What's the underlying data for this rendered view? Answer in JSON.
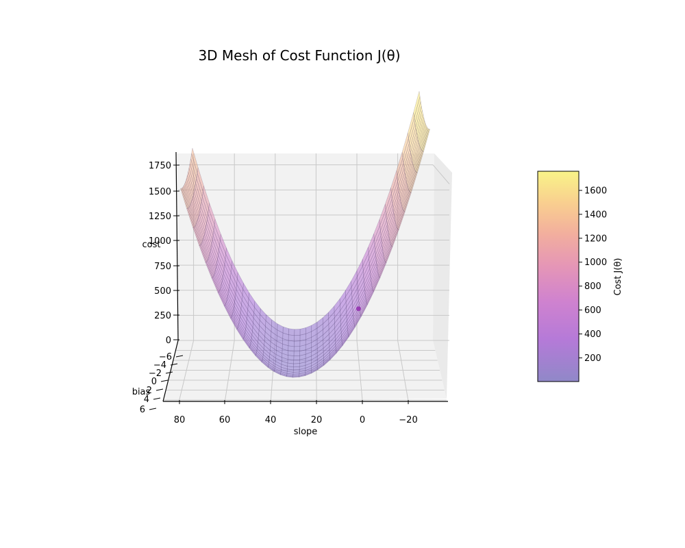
{
  "chart_data": {
    "type": "surface",
    "title": "3D Mesh of Cost Function J(θ)",
    "xlabel": "slope",
    "ylabel": "bias",
    "zlabel": "cost",
    "colorbar_label": "Cost J(θ)",
    "colormap": "plasma",
    "surface_alpha": 0.55,
    "x_ticks": [
      "80",
      "60",
      "40",
      "20",
      "0",
      "−20"
    ],
    "y_ticks": [
      "−6",
      "−4",
      "−2",
      "0",
      "2",
      "4",
      "6"
    ],
    "z_ticks": [
      "0",
      "250",
      "500",
      "750",
      "1000",
      "1250",
      "1500",
      "1750"
    ],
    "colorbar_ticks": [
      "200",
      "400",
      "600",
      "800",
      "1000",
      "1200",
      "1400",
      "1600"
    ],
    "xlim": [
      -38,
      85
    ],
    "ylim": [
      -6,
      6
    ],
    "zlim": [
      0,
      1800
    ],
    "colorbar_range": [
      2,
      1760
    ],
    "surface": {
      "x_range": [
        -30,
        80
      ],
      "y_range": [
        -5,
        5
      ],
      "x_min_cost": 30,
      "cost_min": 2,
      "cost_at_x_minus30": 1760,
      "cost_at_x_80": 1340
    },
    "marker": {
      "x": 0.5,
      "y": 0,
      "z": 400,
      "color": "#8e24aa"
    },
    "grid": true
  }
}
